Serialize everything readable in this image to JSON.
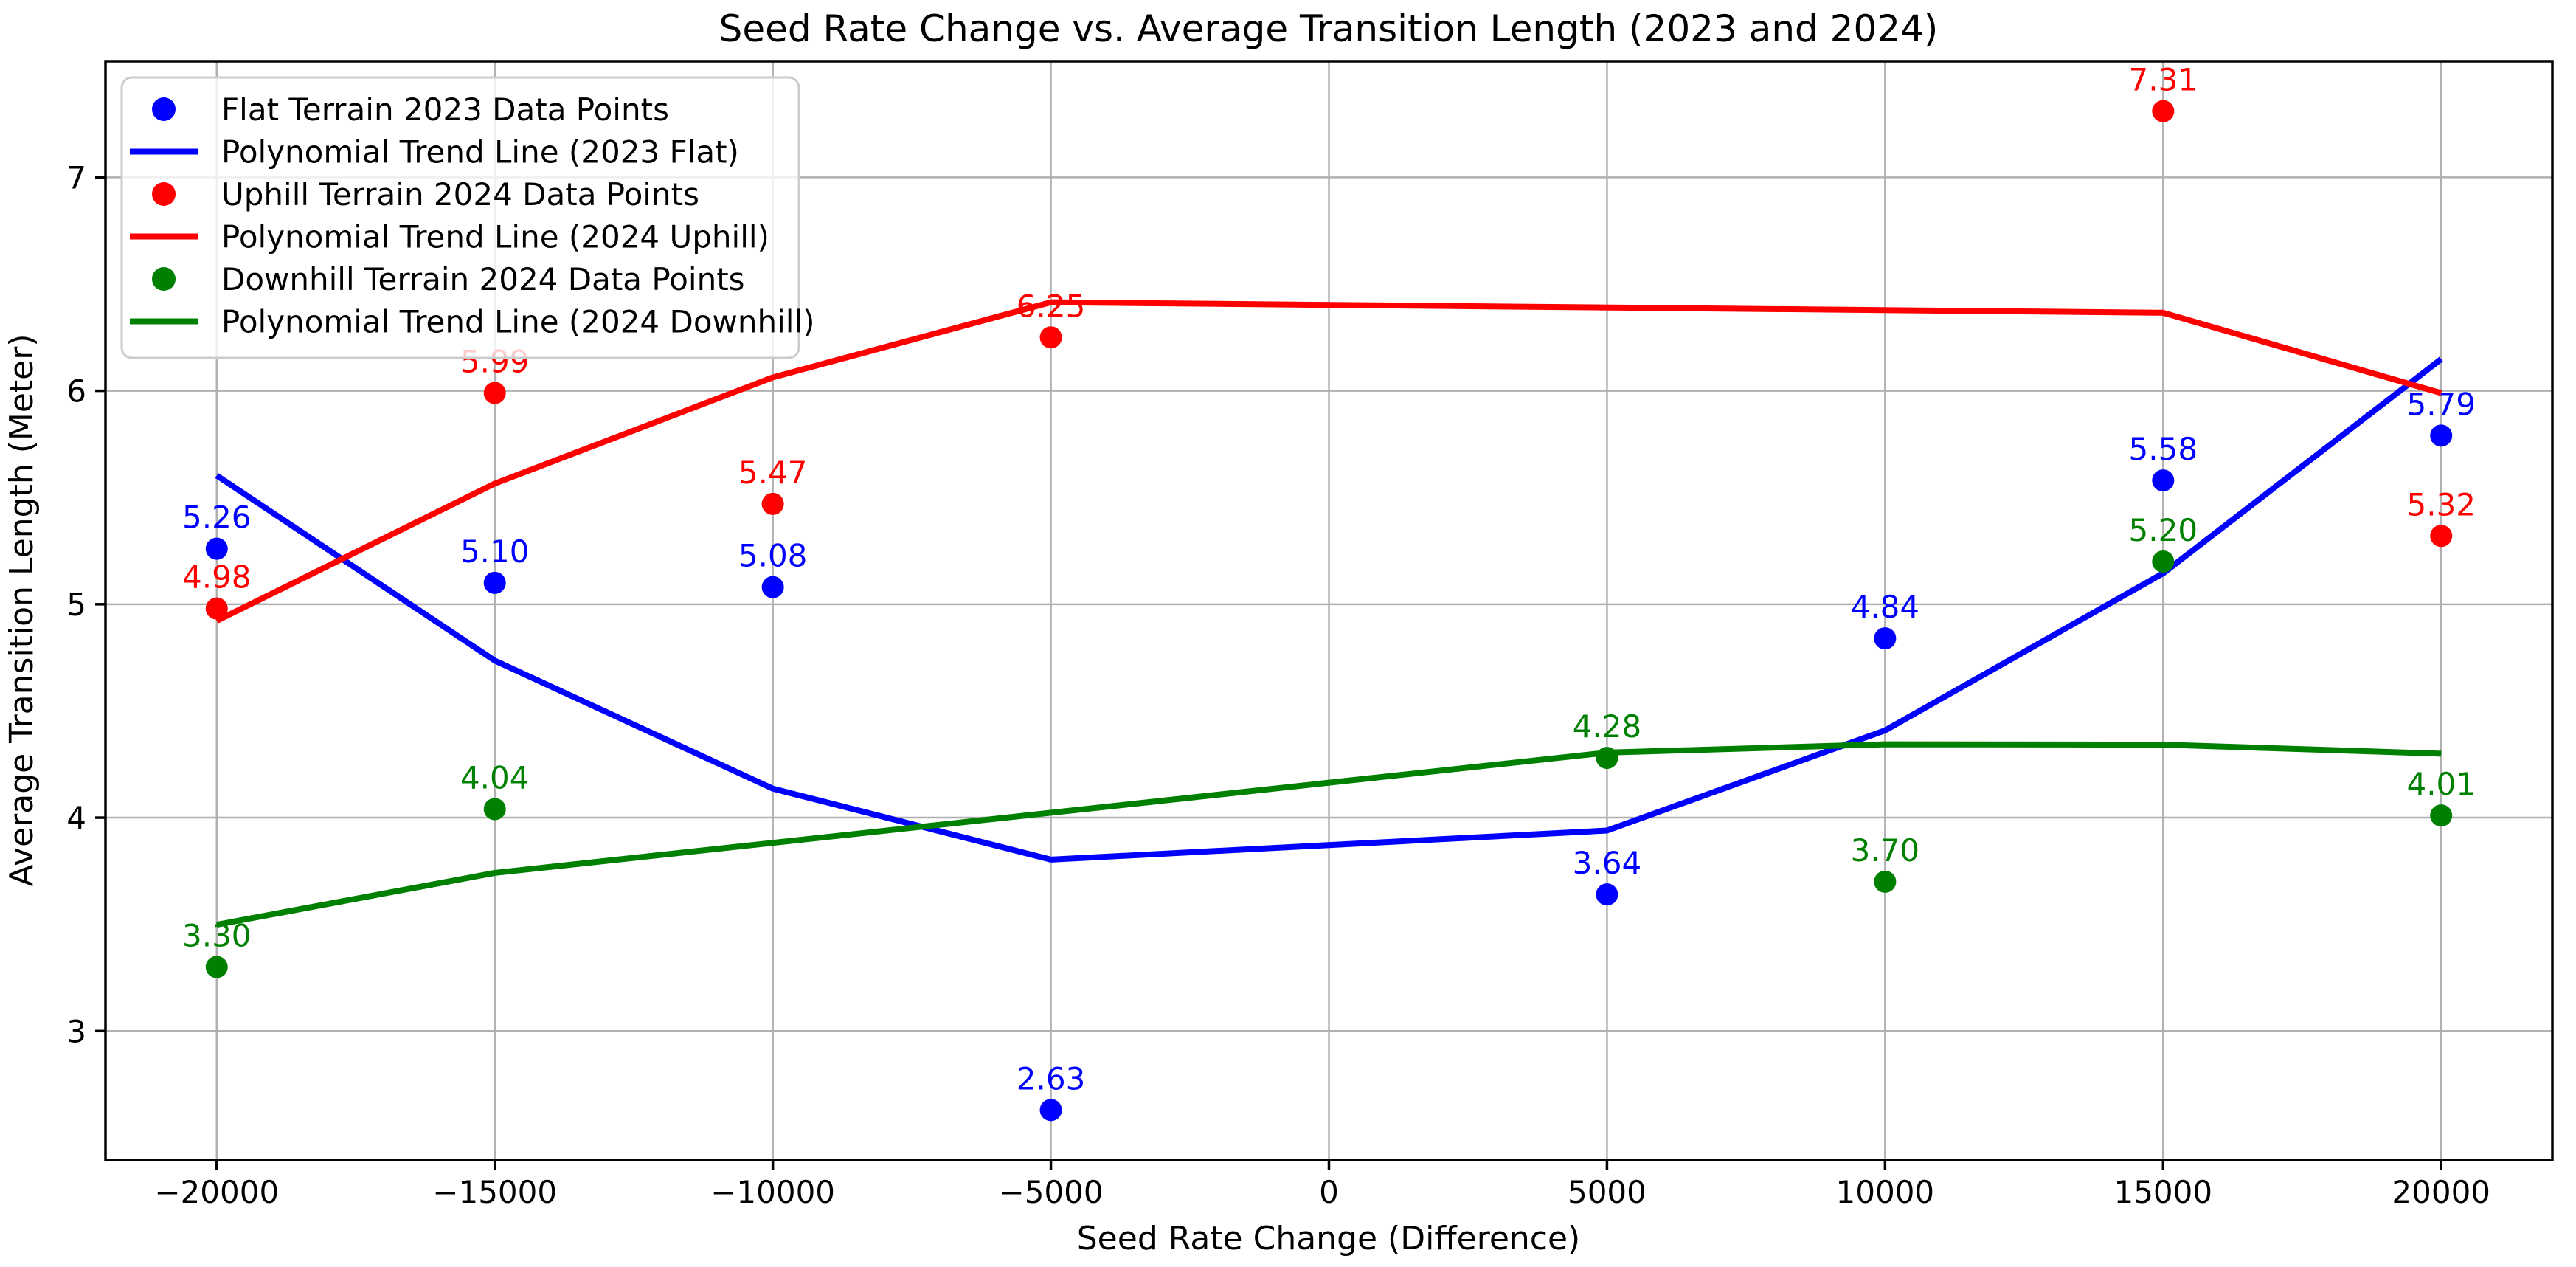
{
  "chart_data": {
    "type": "scatter",
    "title": "Seed Rate Change vs. Average Transition Length (2023 and 2024)",
    "xlabel": "Seed Rate Change (Difference)",
    "ylabel": "Average Transition Length (Meter)",
    "xlim": [
      -22000,
      22000
    ],
    "ylim": [
      2.396,
      7.544
    ],
    "x_tick_values": [
      -20000,
      -15000,
      -10000,
      -5000,
      0,
      5000,
      10000,
      15000,
      20000
    ],
    "x_tick_labels": [
      "−20000",
      "−15000",
      "−10000",
      "−5000",
      "0",
      "5000",
      "10000",
      "15000",
      "20000"
    ],
    "y_tick_values": [
      3,
      4,
      5,
      6,
      7
    ],
    "y_tick_labels": [
      "3",
      "4",
      "5",
      "6",
      "7"
    ],
    "grid": true,
    "legend_position": "upper left",
    "trend_type": "quadratic_least_squares_fit_evaluated_at_data_x",
    "series": [
      {
        "name": "Flat Terrain 2023 Data Points",
        "trend_name": "Polynomial Trend Line (2023 Flat)",
        "color": "#0000ff",
        "x": [
          -20000,
          -15000,
          -10000,
          -5000,
          5000,
          10000,
          15000,
          20000
        ],
        "y": [
          5.26,
          5.1,
          5.08,
          2.63,
          3.64,
          4.84,
          5.58,
          5.79
        ],
        "point_labels": [
          "5.26",
          "5.10",
          "5.08",
          "2.63",
          "3.64",
          "4.84",
          "5.58",
          "5.79"
        ]
      },
      {
        "name": "Uphill Terrain 2024 Data Points",
        "trend_name": "Polynomial Trend Line (2024 Uphill)",
        "color": "#ff0000",
        "x": [
          -20000,
          -15000,
          -10000,
          -5000,
          15000,
          20000
        ],
        "y": [
          4.98,
          5.99,
          5.47,
          6.25,
          7.31,
          5.32
        ],
        "point_labels": [
          "4.98",
          "5.99",
          "5.47",
          "6.25",
          "7.31",
          "5.32"
        ]
      },
      {
        "name": "Downhill Terrain 2024 Data Points",
        "trend_name": "Polynomial Trend Line (2024 Downhill)",
        "color": "#008000",
        "x": [
          -20000,
          -15000,
          5000,
          10000,
          15000,
          20000
        ],
        "y": [
          3.3,
          4.04,
          4.28,
          3.7,
          5.2,
          4.01
        ],
        "point_labels": [
          "3.30",
          "4.04",
          "4.28",
          "3.70",
          "5.20",
          "4.01"
        ]
      }
    ],
    "style": {
      "background": "#ffffff",
      "grid_color": "#b0b0b0",
      "spine_color": "#000000",
      "legend_border_color": "#cccccc",
      "legend_bg": "#ffffff",
      "legend_bg_alpha": 0.8
    }
  }
}
